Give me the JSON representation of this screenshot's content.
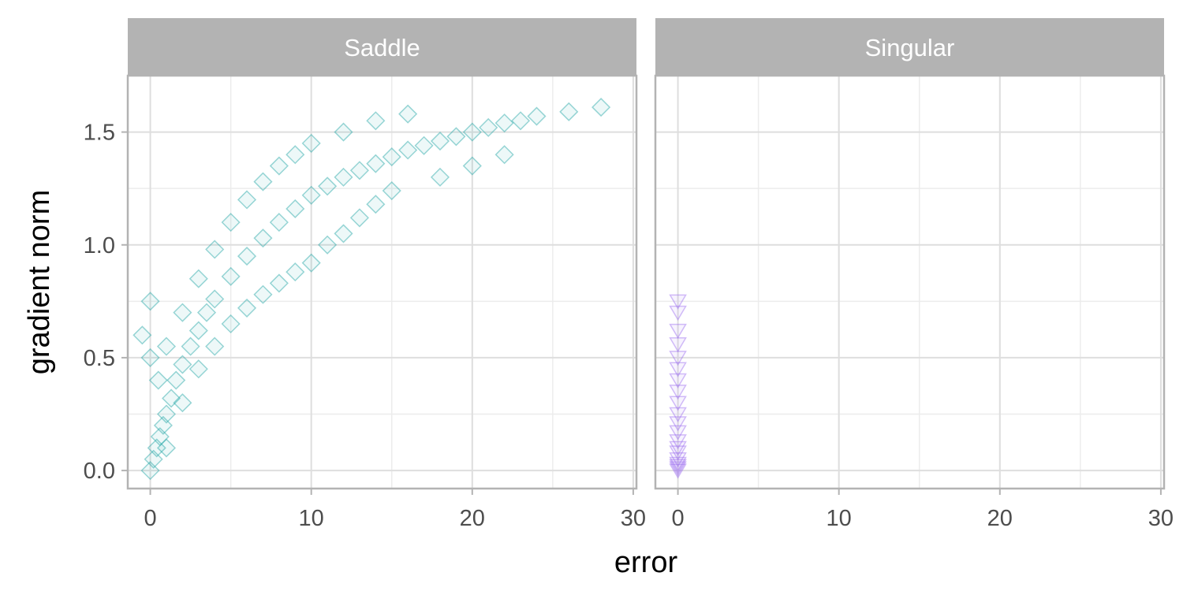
{
  "chart_data": {
    "type": "scatter",
    "xlabel": "error",
    "ylabel": "gradient norm",
    "xlim": [
      -1.4,
      30.2
    ],
    "ylim": [
      -0.08,
      1.75
    ],
    "x_ticks": [
      0,
      10,
      20,
      30
    ],
    "x_tick_labels": [
      "0",
      "10",
      "20",
      "30"
    ],
    "y_ticks": [
      0.0,
      0.5,
      1.0,
      1.5
    ],
    "y_tick_labels": [
      "0.0",
      "0.5",
      "1.0",
      "1.5"
    ],
    "grid": true,
    "legend": "none",
    "panels": [
      {
        "facet": "Saddle",
        "marker": "diamond",
        "color": "#1fa5a3",
        "points": [
          [
            0,
            0.0
          ],
          [
            0.2,
            0.05
          ],
          [
            0.4,
            0.1
          ],
          [
            0.6,
            0.15
          ],
          [
            0.8,
            0.2
          ],
          [
            1.0,
            0.25
          ],
          [
            1.3,
            0.32
          ],
          [
            1.6,
            0.4
          ],
          [
            2.0,
            0.47
          ],
          [
            2.5,
            0.55
          ],
          [
            3.0,
            0.62
          ],
          [
            3.5,
            0.7
          ],
          [
            4.0,
            0.76
          ],
          [
            5.0,
            0.86
          ],
          [
            6.0,
            0.95
          ],
          [
            7.0,
            1.03
          ],
          [
            8.0,
            1.1
          ],
          [
            9.0,
            1.16
          ],
          [
            10.0,
            1.22
          ],
          [
            11.0,
            1.26
          ],
          [
            12.0,
            1.3
          ],
          [
            13.0,
            1.33
          ],
          [
            14.0,
            1.36
          ],
          [
            15.0,
            1.39
          ],
          [
            16.0,
            1.42
          ],
          [
            17.0,
            1.44
          ],
          [
            18.0,
            1.46
          ],
          [
            19.0,
            1.48
          ],
          [
            20.0,
            1.5
          ],
          [
            21.0,
            1.52
          ],
          [
            22.0,
            1.54
          ],
          [
            23.0,
            1.55
          ],
          [
            24.0,
            1.57
          ],
          [
            26.0,
            1.59
          ],
          [
            28.0,
            1.61
          ],
          [
            1.0,
            0.1
          ],
          [
            2.0,
            0.3
          ],
          [
            3.0,
            0.45
          ],
          [
            4.0,
            0.55
          ],
          [
            5.0,
            0.65
          ],
          [
            6.0,
            0.72
          ],
          [
            7.0,
            0.78
          ],
          [
            8.0,
            0.83
          ],
          [
            9.0,
            0.88
          ],
          [
            10.0,
            0.92
          ],
          [
            0.5,
            0.4
          ],
          [
            1.0,
            0.55
          ],
          [
            2.0,
            0.7
          ],
          [
            3.0,
            0.85
          ],
          [
            4.0,
            0.98
          ],
          [
            5.0,
            1.1
          ],
          [
            6.0,
            1.2
          ],
          [
            7.0,
            1.28
          ],
          [
            8.0,
            1.35
          ],
          [
            9.0,
            1.4
          ],
          [
            10.0,
            1.45
          ],
          [
            12.0,
            1.5
          ],
          [
            14.0,
            1.55
          ],
          [
            16.0,
            1.58
          ],
          [
            0,
            0.5
          ],
          [
            -0.5,
            0.6
          ],
          [
            0,
            0.75
          ],
          [
            11.0,
            1.0
          ],
          [
            12.0,
            1.05
          ],
          [
            13.0,
            1.12
          ],
          [
            14.0,
            1.18
          ],
          [
            15.0,
            1.24
          ],
          [
            18.0,
            1.3
          ],
          [
            20.0,
            1.35
          ],
          [
            22.0,
            1.4
          ]
        ]
      },
      {
        "facet": "Singular",
        "marker": "triangle-down",
        "color": "#9b6cf0",
        "points": [
          [
            0,
            0.0
          ],
          [
            0,
            0.01
          ],
          [
            0,
            0.02
          ],
          [
            0,
            0.03
          ],
          [
            0,
            0.05
          ],
          [
            0,
            0.08
          ],
          [
            0,
            0.1
          ],
          [
            0,
            0.13
          ],
          [
            0,
            0.17
          ],
          [
            0,
            0.21
          ],
          [
            0,
            0.25
          ],
          [
            0,
            0.3
          ],
          [
            0,
            0.35
          ],
          [
            0,
            0.4
          ],
          [
            0,
            0.45
          ],
          [
            0,
            0.5
          ],
          [
            0,
            0.56
          ],
          [
            0,
            0.62
          ],
          [
            0,
            0.7
          ],
          [
            0,
            0.75
          ]
        ]
      }
    ]
  }
}
